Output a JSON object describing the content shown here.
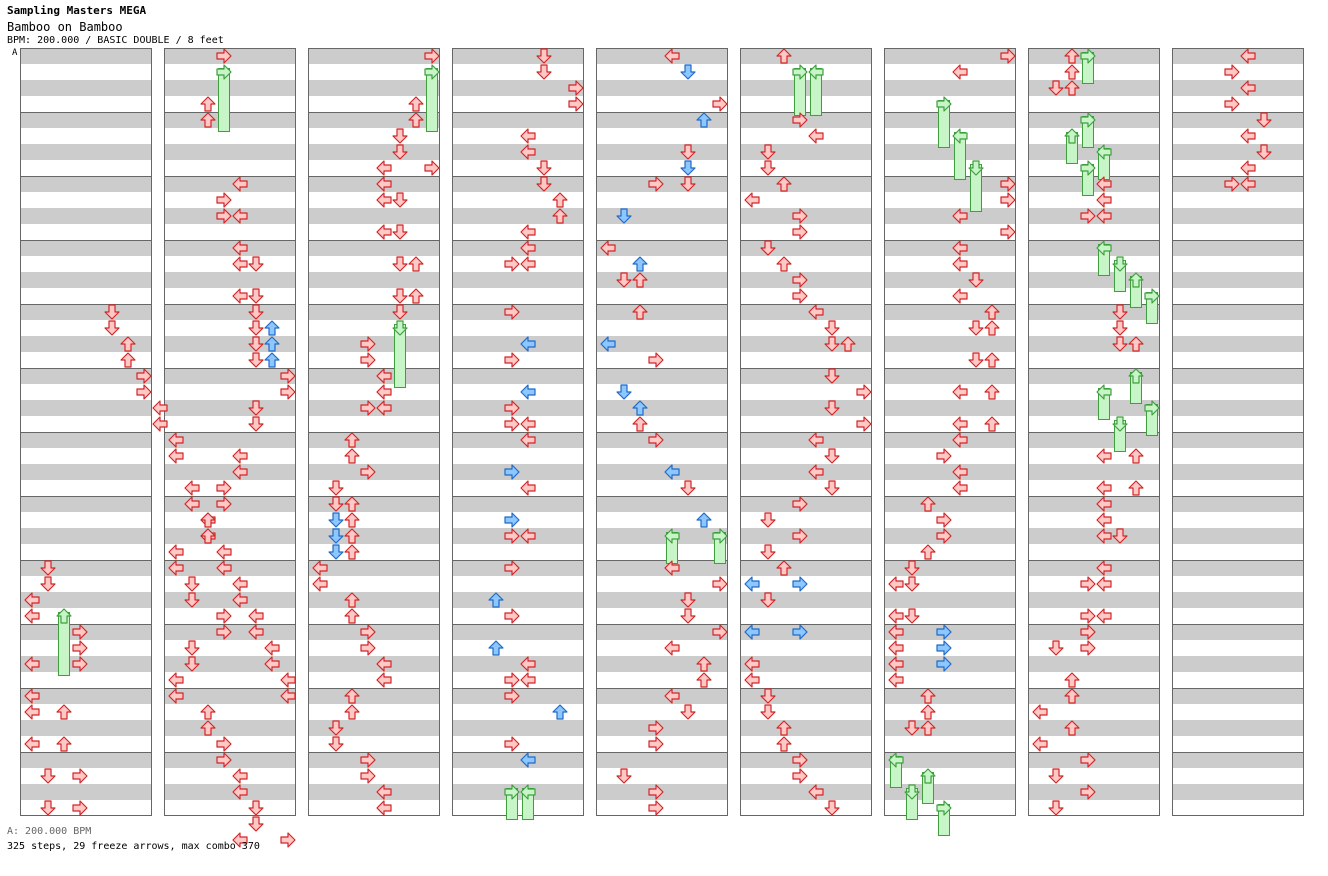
{
  "header": {
    "pack": "Sampling Masters MEGA",
    "song": "Bamboo on Bamboo",
    "meta": "BPM: 200.000 / BASIC DOUBLE / 8 feet",
    "bpm_marker": "A"
  },
  "footer": {
    "bpm": "A: 200.000 BPM",
    "stats": "325 steps, 29 freeze arrows, max combo 370"
  },
  "colors": {
    "red_fill": "#ffc8c8",
    "red_stroke": "#d22626",
    "blue_fill": "#8cc8ff",
    "blue_stroke": "#2268c8",
    "green_fill": "#c8f5c8",
    "green_stroke": "#3f9f3f"
  }
}
